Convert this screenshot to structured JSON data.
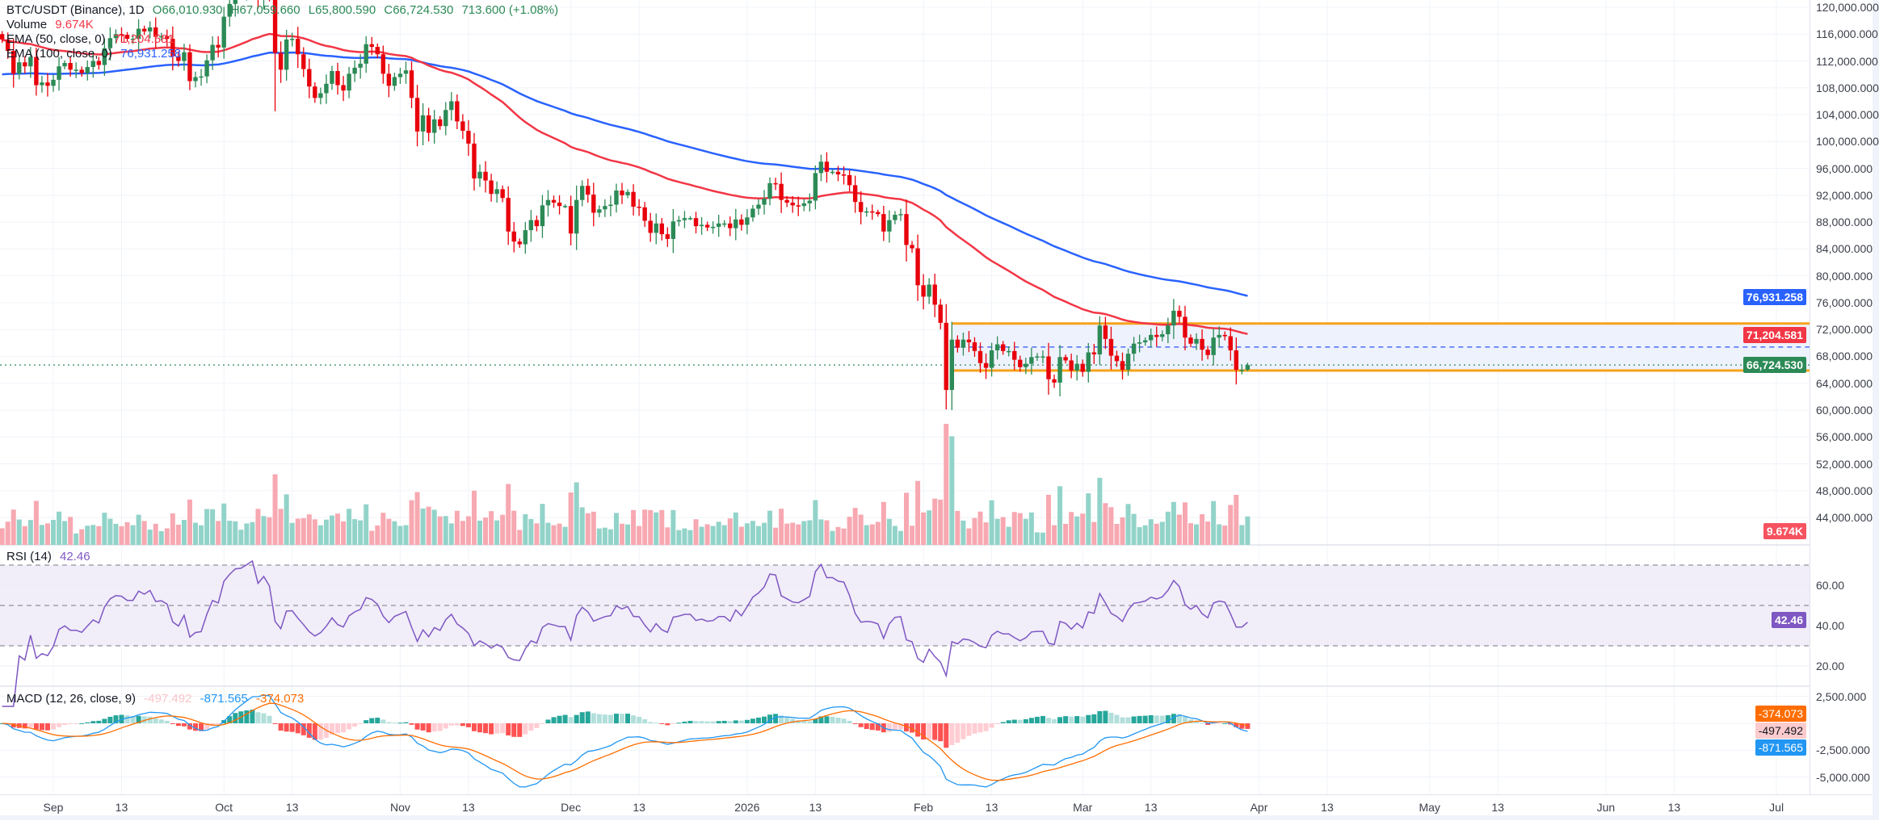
{
  "legend": {
    "symbol": "BTC/USDT (Binance), 1D",
    "open": "O66,010.930",
    "high": "H67,059.660",
    "low": "L65,800.590",
    "close": "C66,724.530",
    "change": "713.600 (+1.08%)",
    "volume_label": "Volume",
    "volume_value": "9.674K",
    "ema50_label": "EMA (50, close, 0)",
    "ema50_value": "71,204.581",
    "ema100_label": "EMA (100, close, 0)",
    "ema100_value": "76,931.258",
    "rsi_label": "RSI (14)",
    "rsi_value": "42.46",
    "macd_label": "MACD (12, 26, close, 9)",
    "macd_hist": "-497.492",
    "macd_line": "-871.565",
    "macd_signal": "-374.073"
  },
  "badges": {
    "ema100": "76,931.258",
    "ema50": "71,204.581",
    "last": "66,724.530",
    "volume": "9.674K",
    "rsi": "42.46",
    "signal": "-374.073",
    "hist": "-497.492",
    "macd": "-871.565"
  },
  "colors": {
    "up": "#2c8a56",
    "down": "#e8000b",
    "ema50": "#f23645",
    "ema100": "#2962ff",
    "vol_up": "#92d3c9",
    "vol_down": "#f7a8b1",
    "rsi": "#7e57c2",
    "macd": "#2196f3",
    "signal": "#ff6d00",
    "range": "#f7a21b"
  },
  "chart_data": {
    "type": "candlestick",
    "title": "BTC/USDT (Binance), 1D",
    "start_date": "2025-08-23",
    "price_unit": "thousand USDT",
    "price_ticks": [
      "120,000.000",
      "116,000.000",
      "112,000.000",
      "108,000.000",
      "104,000.000",
      "100,000.000",
      "96,000.000",
      "92,000.000",
      "88,000.000",
      "84,000.000",
      "80,000.000",
      "76,000.000",
      "72,000.000",
      "68,000.000",
      "64,000.000",
      "60,000.000",
      "56,000.000",
      "52,000.000",
      "48,000.000",
      "44,000.000"
    ],
    "price_tick_values": [
      120,
      116,
      112,
      108,
      104,
      100,
      96,
      92,
      88,
      84,
      80,
      76,
      72,
      68,
      64,
      60,
      56,
      52,
      48,
      44
    ],
    "rsi_ticks": [
      {
        "v": 60,
        "label": "60.00"
      },
      {
        "v": 40,
        "label": "40.00"
      },
      {
        "v": 20,
        "label": "20.00"
      }
    ],
    "macd_ticks": [
      {
        "v": 2500,
        "label": "2,500.000"
      },
      {
        "v": -2500,
        "label": "-2,500.000"
      },
      {
        "v": -5000,
        "label": "-5,000.000"
      }
    ],
    "time_labels": [
      {
        "label": "Sep",
        "day": 0
      },
      {
        "label": "13",
        "day": 12
      },
      {
        "label": "Oct",
        "day": 30
      },
      {
        "label": "13",
        "day": 42
      },
      {
        "label": "Nov",
        "day": 61
      },
      {
        "label": "13",
        "day": 73
      },
      {
        "label": "Dec",
        "day": 91
      },
      {
        "label": "13",
        "day": 103
      },
      {
        "label": "2026",
        "day": 122
      },
      {
        "label": "13",
        "day": 134
      },
      {
        "label": "Feb",
        "day": 153
      },
      {
        "label": "13",
        "day": 165
      },
      {
        "label": "Mar",
        "day": 181
      },
      {
        "label": "13",
        "day": 193
      },
      {
        "label": "Apr",
        "day": 212
      },
      {
        "label": "13",
        "day": 224
      },
      {
        "label": "May",
        "day": 242
      },
      {
        "label": "13",
        "day": 254
      },
      {
        "label": "Jun",
        "day": 273
      },
      {
        "label": "13",
        "day": 285
      },
      {
        "label": "Jul",
        "day": 303
      }
    ],
    "first_day_offset": -9,
    "closes": [
      115.2,
      113.5,
      110.1,
      111.8,
      111.2,
      112.6,
      108.4,
      108.8,
      108.3,
      109.2,
      111.2,
      111.7,
      110.7,
      110.7,
      110.2,
      111.1,
      112.0,
      111.4,
      113.9,
      115.4,
      116.0,
      115.9,
      115.3,
      115.3,
      116.8,
      116.4,
      117.0,
      115.6,
      115.7,
      115.3,
      112.7,
      112.0,
      113.3,
      109.0,
      109.6,
      109.7,
      112.1,
      114.4,
      114.0,
      118.6,
      120.5,
      122.2,
      122.4,
      123.5,
      124.7,
      121.4,
      123.3,
      121.7,
      113.2,
      110.7,
      115.2,
      115.3,
      113.0,
      110.8,
      108.2,
      106.5,
      107.2,
      108.6,
      110.5,
      108.4,
      107.6,
      110.1,
      111.0,
      111.6,
      114.5,
      114.1,
      113.0,
      110.1,
      108.3,
      109.6,
      110.1,
      110.6,
      106.5,
      101.5,
      103.9,
      101.3,
      103.3,
      102.3,
      104.7,
      106.0,
      103.0,
      101.6,
      99.7,
      94.5,
      95.5,
      94.2,
      92.2,
      92.9,
      91.6,
      86.6,
      85.1,
      84.7,
      86.8,
      88.3,
      87.4,
      90.5,
      91.3,
      90.9,
      90.4,
      90.4,
      86.3,
      91.3,
      93.4,
      92.1,
      89.4,
      89.9,
      90.4,
      90.6,
      92.7,
      92.0,
      92.5,
      90.3,
      90.2,
      88.2,
      86.4,
      87.8,
      86.2,
      85.5,
      88.1,
      88.3,
      88.6,
      88.6,
      87.4,
      87.6,
      87.2,
      87.3,
      87.8,
      87.8,
      87.1,
      88.4,
      87.6,
      88.7,
      90.0,
      90.6,
      91.5,
      93.8,
      93.7,
      91.3,
      90.9,
      90.5,
      90.4,
      90.8,
      91.2,
      95.3,
      97.0,
      95.5,
      95.5,
      95.1,
      95.0,
      93.5,
      91.0,
      89.5,
      89.6,
      89.5,
      89.2,
      86.6,
      88.3,
      89.1,
      89.2,
      84.6,
      84.1,
      78.6,
      76.9,
      78.7,
      75.7,
      73.0,
      63.0,
      70.5,
      69.3,
      70.5,
      70.1,
      68.8,
      67.0,
      66.3,
      68.9,
      69.8,
      68.8,
      68.8,
      67.5,
      66.4,
      66.9,
      67.9,
      68.0,
      68.0,
      64.6,
      64.1,
      67.9,
      67.4,
      65.9,
      66.9,
      65.7,
      68.6,
      68.3,
      72.6,
      70.6,
      68.1,
      67.3,
      66.0,
      68.4,
      69.9,
      70.1,
      70.4,
      71.2,
      70.9,
      71.3,
      72.6,
      74.8,
      73.9,
      70.8,
      69.9,
      70.6,
      69.0,
      68.2,
      70.8,
      71.2,
      71.0,
      68.9,
      66.0,
      66.01,
      66.72
    ],
    "last_candle": {
      "o": 66.01093,
      "h": 67.05966,
      "l": 65.80059,
      "c": 66.72453
    },
    "ema50_seed": 115.1,
    "ema100_seed": 109.9,
    "range_box": {
      "top": 72.9,
      "bottom": 65.9,
      "mid": 69.4,
      "start_day": 158
    }
  }
}
